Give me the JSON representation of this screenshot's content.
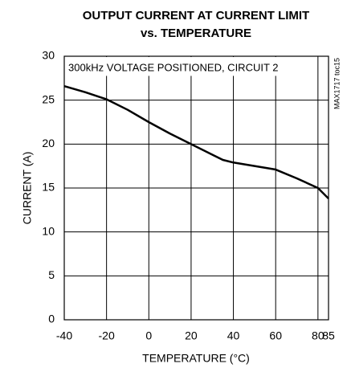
{
  "chart_data": {
    "type": "line",
    "title": [
      "OUTPUT CURRENT AT CURRENT LIMIT",
      "vs. TEMPERATURE"
    ],
    "annotation": "300kHz VOLTAGE POSITIONED, CIRCUIT 2",
    "side_note": "MAX1717 toc15",
    "x_label": "TEMPERATURE (°C)",
    "y_label": "CURRENT (A)",
    "x": [
      -40,
      -30,
      -20,
      -10,
      0,
      10,
      20,
      30,
      35,
      40,
      50,
      60,
      70,
      80,
      85
    ],
    "series": [
      {
        "name": "CURRENT",
        "color": "#000000",
        "values": [
          26.6,
          25.9,
          25.1,
          23.9,
          22.5,
          21.2,
          20.0,
          18.8,
          18.2,
          17.9,
          17.5,
          17.1,
          16.1,
          15.0,
          13.8
        ]
      }
    ],
    "xlim": [
      -40,
      85
    ],
    "xticks": [
      -40,
      -20,
      0,
      20,
      40,
      60,
      80,
      85
    ],
    "ylim": [
      0,
      30
    ],
    "yticks": [
      0,
      5,
      10,
      15,
      20,
      25,
      30
    ],
    "grid": true
  }
}
